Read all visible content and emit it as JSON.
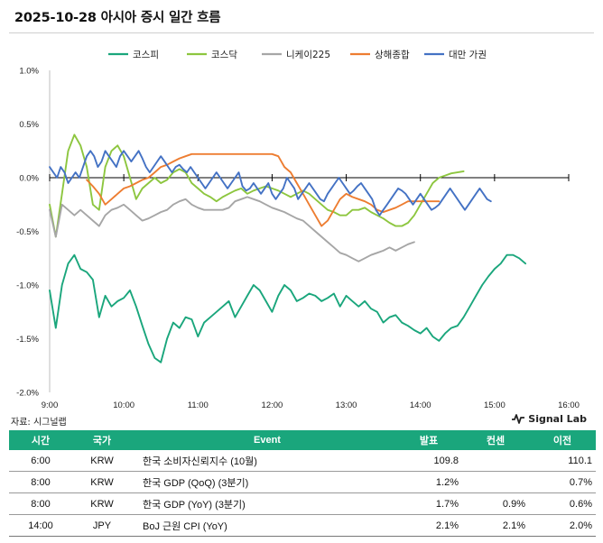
{
  "title": "2025-10-28 아시아 증시 일간 흐름",
  "source": "자료: 시그널랩",
  "brand": "Signal Lab",
  "colors": {
    "kospi": "#1aa67c",
    "kosdaq": "#8dc63f",
    "nikkei": "#a6a6a6",
    "shanghai": "#ed7d31",
    "taiwan": "#4472c4",
    "header_bg": "#1aa67c"
  },
  "chart_data": {
    "type": "line",
    "x_ticks": [
      "9:00",
      "10:00",
      "11:00",
      "12:00",
      "13:00",
      "14:00",
      "15:00",
      "16:00"
    ],
    "y_ticks": [
      "1.0%",
      "0.5%",
      "0.0%",
      "-0.5%",
      "-1.0%",
      "-1.5%",
      "-2.0%"
    ],
    "ylim": [
      -2.0,
      1.0
    ],
    "xlim_hours": [
      9,
      16
    ],
    "legend_position": "top",
    "series": [
      {
        "name": "코스피",
        "color": "#1aa67c",
        "start": "9:00",
        "end": "15:30",
        "step_min": 5,
        "points": [
          -1.05,
          -1.4,
          -1.0,
          -0.8,
          -0.72,
          -0.85,
          -0.88,
          -0.95,
          -1.3,
          -1.1,
          -1.2,
          -1.15,
          -1.12,
          -1.05,
          -1.2,
          -1.38,
          -1.55,
          -1.68,
          -1.72,
          -1.5,
          -1.35,
          -1.4,
          -1.3,
          -1.32,
          -1.48,
          -1.35,
          -1.3,
          -1.25,
          -1.2,
          -1.15,
          -1.3,
          -1.2,
          -1.1,
          -1.0,
          -1.05,
          -1.15,
          -1.25,
          -1.1,
          -1.0,
          -1.05,
          -1.15,
          -1.12,
          -1.08,
          -1.1,
          -1.15,
          -1.12,
          -1.08,
          -1.2,
          -1.1,
          -1.15,
          -1.2,
          -1.15,
          -1.22,
          -1.25,
          -1.35,
          -1.3,
          -1.28,
          -1.35,
          -1.38,
          -1.42,
          -1.45,
          -1.4,
          -1.48,
          -1.52,
          -1.45,
          -1.4,
          -1.38,
          -1.3,
          -1.2,
          -1.1,
          -1.0,
          -0.92,
          -0.85,
          -0.8,
          -0.72,
          -0.72,
          -0.75,
          -0.8
        ]
      },
      {
        "name": "코스닥",
        "color": "#8dc63f",
        "start": "9:00",
        "end": "15:30",
        "step_min": 5,
        "points": [
          -0.25,
          -0.55,
          -0.15,
          0.25,
          0.4,
          0.3,
          0.1,
          -0.25,
          -0.3,
          0.1,
          0.25,
          0.3,
          0.2,
          0.0,
          -0.2,
          -0.1,
          -0.05,
          0.0,
          -0.05,
          -0.02,
          0.05,
          0.08,
          0.05,
          -0.05,
          -0.1,
          -0.15,
          -0.18,
          -0.22,
          -0.18,
          -0.15,
          -0.12,
          -0.1,
          -0.15,
          -0.12,
          -0.1,
          -0.08,
          -0.1,
          -0.12,
          -0.15,
          -0.18,
          -0.15,
          -0.12,
          -0.15,
          -0.2,
          -0.25,
          -0.3,
          -0.32,
          -0.35,
          -0.35,
          -0.3,
          -0.3,
          -0.28,
          -0.32,
          -0.35,
          -0.38,
          -0.42,
          -0.45,
          -0.45,
          -0.42,
          -0.35,
          -0.25,
          -0.15,
          -0.05,
          0.0,
          0.02,
          0.04,
          0.05,
          0.06
        ]
      },
      {
        "name": "니케이225",
        "color": "#a6a6a6",
        "start": "9:00",
        "end": "15:30",
        "step_min": 5,
        "points": [
          -0.3,
          -0.55,
          -0.25,
          -0.3,
          -0.35,
          -0.3,
          -0.35,
          -0.4,
          -0.45,
          -0.35,
          -0.3,
          -0.28,
          -0.25,
          -0.3,
          -0.35,
          -0.4,
          -0.38,
          -0.35,
          -0.32,
          -0.3,
          -0.25,
          -0.22,
          -0.2,
          -0.25,
          -0.28,
          -0.3,
          -0.3,
          -0.3,
          -0.3,
          -0.28,
          -0.22,
          -0.2,
          -0.18,
          -0.2,
          -0.22,
          -0.25,
          -0.28,
          -0.3,
          -0.32,
          -0.35,
          -0.38,
          -0.4,
          -0.45,
          -0.5,
          -0.55,
          -0.6,
          -0.65,
          -0.7,
          -0.72,
          -0.75,
          -0.78,
          -0.75,
          -0.72,
          -0.7,
          -0.68,
          -0.65,
          -0.68,
          -0.65,
          -0.62,
          -0.6
        ]
      },
      {
        "name": "상해종합",
        "color": "#ed7d31",
        "start": "9:30",
        "end": "15:55",
        "step_min": 5,
        "points": [
          -0.02,
          -0.08,
          -0.15,
          -0.25,
          -0.2,
          -0.15,
          -0.1,
          -0.08,
          -0.05,
          -0.02,
          0.0,
          0.05,
          0.1,
          0.12,
          0.15,
          0.18,
          0.2,
          0.22,
          0.22,
          0.22,
          0.22,
          0.22,
          0.22,
          0.22,
          0.22,
          0.22,
          0.22,
          0.22,
          0.22,
          0.22,
          0.22,
          0.2,
          0.1,
          0.05,
          -0.05,
          -0.15,
          -0.25,
          -0.35,
          -0.45,
          -0.4,
          -0.3,
          -0.2,
          -0.15,
          -0.18,
          -0.2,
          -0.22,
          -0.25,
          -0.3,
          -0.32,
          -0.3,
          -0.28,
          -0.25,
          -0.22,
          -0.22,
          -0.22,
          -0.22,
          -0.22,
          -0.22
        ]
      },
      {
        "name": "대만 가권",
        "color": "#4472c4",
        "start": "9:00",
        "end": "13:30",
        "step_min": 3,
        "points": [
          0.1,
          0.05,
          0.0,
          0.1,
          0.05,
          -0.05,
          0.0,
          0.05,
          0.0,
          0.1,
          0.2,
          0.25,
          0.2,
          0.1,
          0.15,
          0.25,
          0.2,
          0.15,
          0.1,
          0.2,
          0.25,
          0.2,
          0.15,
          0.2,
          0.25,
          0.18,
          0.1,
          0.05,
          0.1,
          0.15,
          0.2,
          0.15,
          0.1,
          0.05,
          0.1,
          0.12,
          0.08,
          0.05,
          0.1,
          0.05,
          0.0,
          -0.05,
          -0.1,
          -0.05,
          0.0,
          0.05,
          0.0,
          -0.05,
          -0.1,
          -0.05,
          0.0,
          0.05,
          -0.08,
          -0.12,
          -0.1,
          -0.05,
          -0.1,
          -0.15,
          -0.1,
          -0.05,
          -0.15,
          -0.2,
          -0.15,
          -0.1,
          0.0,
          -0.05,
          -0.1,
          -0.2,
          -0.15,
          -0.1,
          -0.05,
          -0.1,
          -0.15,
          -0.2,
          -0.22,
          -0.15,
          -0.1,
          -0.05,
          0.0,
          -0.05,
          -0.1,
          -0.15,
          -0.12,
          -0.08,
          -0.05,
          -0.1,
          -0.15,
          -0.2,
          -0.3,
          -0.35,
          -0.3,
          -0.25,
          -0.2,
          -0.15,
          -0.1,
          -0.12,
          -0.15,
          -0.2,
          -0.25,
          -0.2,
          -0.15,
          -0.2,
          -0.25,
          -0.3,
          -0.28,
          -0.25,
          -0.2,
          -0.15,
          -0.1,
          -0.15,
          -0.2,
          -0.25,
          -0.3,
          -0.25,
          -0.2,
          -0.15,
          -0.1,
          -0.15,
          -0.2,
          -0.22
        ]
      }
    ]
  },
  "table": {
    "headers": [
      "시간",
      "국가",
      "Event",
      "발표",
      "컨센",
      "이전"
    ],
    "rows": [
      [
        "6:00",
        "KRW",
        "한국 소비자신뢰지수 (10월)",
        "109.8",
        "",
        "110.1"
      ],
      [
        "8:00",
        "KRW",
        "한국 GDP (QoQ) (3분기)",
        "1.2%",
        "",
        "0.7%"
      ],
      [
        "8:00",
        "KRW",
        "한국 GDP (YoY) (3분기)",
        "1.7%",
        "0.9%",
        "0.6%"
      ],
      [
        "14:00",
        "JPY",
        "BoJ 근원 CPI (YoY)",
        "2.1%",
        "2.1%",
        "2.0%"
      ]
    ]
  }
}
